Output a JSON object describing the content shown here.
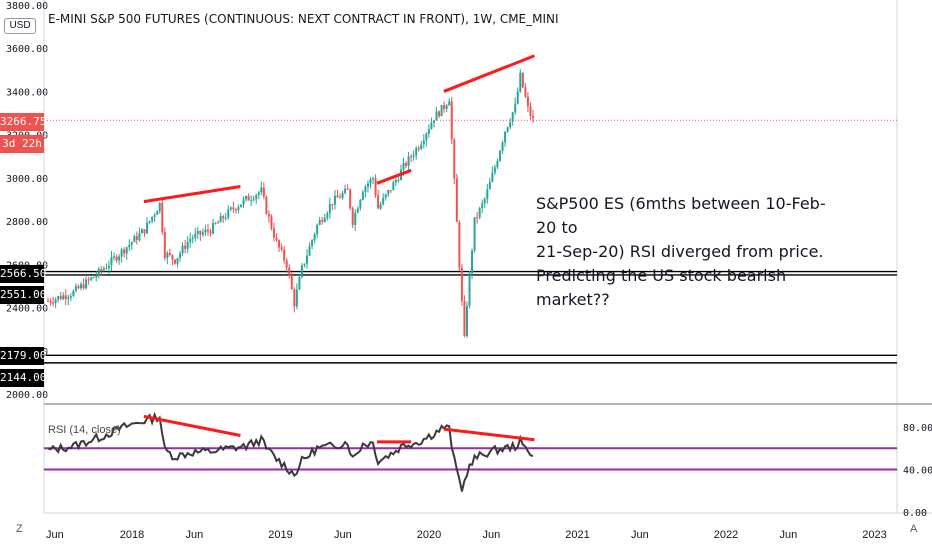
{
  "header": {
    "title": "E-MINI S&P 500 FUTURES (CONTINUOUS: NEXT CONTRACT IN FRONT), 1W, CME_MINI",
    "currency_button": "USD"
  },
  "annotation": {
    "text": "S&P500 ES (6mths between 10-Feb-20 to\n21-Sep-20) RSI diverged from price.\nPredicting the US stock bearish market??"
  },
  "toolbar": {
    "z_label": "Z",
    "a_label": "A"
  },
  "price_badges": {
    "last_price": "3266.75",
    "countdown": "3d 22h",
    "level_1": "2566.50",
    "level_2": "2551.00",
    "level_3": "2179.00",
    "level_4": "2144.00"
  },
  "colors": {
    "up_candle": "#26a69a",
    "down_candle": "#ef5350",
    "trendline": "#ff1a1a",
    "rsi_line": "#3a3a3a",
    "rsi_band": "#9c27b0",
    "badge_dark": "#000000",
    "badge_red": "#ef5350"
  },
  "chart_data": [
    {
      "type": "candlestick",
      "title": "E-MINI S&P 500 FUTURES (CONTINUOUS: NEXT CONTRACT IN FRONT), 1W, CME_MINI",
      "interval": "1W",
      "ylim": [
        1980,
        3810
      ],
      "y_ticks": [
        "2000.00",
        "2200.00",
        "2400.00",
        "2600.00",
        "2800.00",
        "3000.00",
        "3200.00",
        "3400.00",
        "3600.00",
        "3800.00"
      ],
      "x_ticks": [
        "Jun",
        "2018",
        "Jun",
        "2019",
        "Jun",
        "2020",
        "Jun",
        "2021",
        "Jun",
        "2022",
        "Jun",
        "2023"
      ],
      "last_price": 3266.75,
      "horizontal_levels": [
        2566.5,
        2551.0,
        2179.0,
        2144.0
      ],
      "anchors": [
        {
          "t": 0,
          "p": 2430
        },
        {
          "t": 10,
          "p": 2470
        },
        {
          "t": 20,
          "p": 2560
        },
        {
          "t": 30,
          "p": 2670
        },
        {
          "t": 38,
          "p": 2760
        },
        {
          "t": 44,
          "p": 2880
        },
        {
          "t": 46,
          "p": 2650
        },
        {
          "t": 50,
          "p": 2620
        },
        {
          "t": 56,
          "p": 2720
        },
        {
          "t": 64,
          "p": 2760
        },
        {
          "t": 72,
          "p": 2850
        },
        {
          "t": 78,
          "p": 2900
        },
        {
          "t": 84,
          "p": 2940
        },
        {
          "t": 86,
          "p": 2850
        },
        {
          "t": 90,
          "p": 2700
        },
        {
          "t": 94,
          "p": 2600
        },
        {
          "t": 97,
          "p": 2420
        },
        {
          "t": 100,
          "p": 2580
        },
        {
          "t": 106,
          "p": 2780
        },
        {
          "t": 112,
          "p": 2890
        },
        {
          "t": 118,
          "p": 2940
        },
        {
          "t": 120,
          "p": 2800
        },
        {
          "t": 124,
          "p": 2950
        },
        {
          "t": 128,
          "p": 3000
        },
        {
          "t": 130,
          "p": 2860
        },
        {
          "t": 136,
          "p": 2970
        },
        {
          "t": 140,
          "p": 3050
        },
        {
          "t": 146,
          "p": 3150
        },
        {
          "t": 152,
          "p": 3280
        },
        {
          "t": 156,
          "p": 3330
        },
        {
          "t": 158,
          "p": 3370
        },
        {
          "t": 160,
          "p": 2980
        },
        {
          "t": 162,
          "p": 2600
        },
        {
          "t": 163,
          "p": 2420
        },
        {
          "t": 164,
          "p": 2250
        },
        {
          "t": 165,
          "p": 2420
        },
        {
          "t": 168,
          "p": 2800
        },
        {
          "t": 172,
          "p": 2900
        },
        {
          "t": 176,
          "p": 3050
        },
        {
          "t": 180,
          "p": 3220
        },
        {
          "t": 184,
          "p": 3330
        },
        {
          "t": 186,
          "p": 3470
        },
        {
          "t": 187,
          "p": 3420
        },
        {
          "t": 189,
          "p": 3320
        },
        {
          "t": 191,
          "p": 3266.75
        }
      ],
      "trendlines": [
        {
          "from": [
            2018.08,
            2890
          ],
          "to": [
            2018.73,
            2960
          ]
        },
        {
          "from": [
            2019.65,
            2975
          ],
          "to": [
            2019.88,
            3035
          ]
        },
        {
          "from": [
            2020.1,
            3400
          ],
          "to": [
            2020.71,
            3565
          ]
        }
      ]
    },
    {
      "type": "line",
      "title": "RSI (14, close)",
      "ylim": [
        0,
        100
      ],
      "y_ticks": [
        "0.00",
        "40.00",
        "80.00"
      ],
      "bands": [
        60,
        40
      ],
      "series": [
        {
          "name": "RSI (14, close)",
          "anchors": [
            {
              "t": 0,
              "v": 58
            },
            {
              "t": 10,
              "v": 62
            },
            {
              "t": 20,
              "v": 70
            },
            {
              "t": 30,
              "v": 80
            },
            {
              "t": 38,
              "v": 86
            },
            {
              "t": 44,
              "v": 90
            },
            {
              "t": 46,
              "v": 58
            },
            {
              "t": 50,
              "v": 52
            },
            {
              "t": 56,
              "v": 56
            },
            {
              "t": 64,
              "v": 57
            },
            {
              "t": 72,
              "v": 60
            },
            {
              "t": 78,
              "v": 62
            },
            {
              "t": 84,
              "v": 68
            },
            {
              "t": 86,
              "v": 60
            },
            {
              "t": 90,
              "v": 50
            },
            {
              "t": 94,
              "v": 42
            },
            {
              "t": 97,
              "v": 35
            },
            {
              "t": 100,
              "v": 48
            },
            {
              "t": 106,
              "v": 60
            },
            {
              "t": 112,
              "v": 62
            },
            {
              "t": 118,
              "v": 66
            },
            {
              "t": 120,
              "v": 50
            },
            {
              "t": 124,
              "v": 64
            },
            {
              "t": 128,
              "v": 65
            },
            {
              "t": 130,
              "v": 48
            },
            {
              "t": 136,
              "v": 56
            },
            {
              "t": 140,
              "v": 63
            },
            {
              "t": 146,
              "v": 66
            },
            {
              "t": 152,
              "v": 74
            },
            {
              "t": 156,
              "v": 80
            },
            {
              "t": 158,
              "v": 78
            },
            {
              "t": 160,
              "v": 48
            },
            {
              "t": 162,
              "v": 30
            },
            {
              "t": 163,
              "v": 22
            },
            {
              "t": 164,
              "v": 28
            },
            {
              "t": 165,
              "v": 38
            },
            {
              "t": 168,
              "v": 50
            },
            {
              "t": 172,
              "v": 55
            },
            {
              "t": 176,
              "v": 58
            },
            {
              "t": 180,
              "v": 60
            },
            {
              "t": 184,
              "v": 62
            },
            {
              "t": 186,
              "v": 66
            },
            {
              "t": 187,
              "v": 62
            },
            {
              "t": 189,
              "v": 58
            },
            {
              "t": 191,
              "v": 55
            }
          ]
        }
      ],
      "trendlines": [
        {
          "from": [
            2018.08,
            90
          ],
          "to": [
            2018.73,
            72
          ]
        },
        {
          "from": [
            2019.65,
            66
          ],
          "to": [
            2019.88,
            66
          ]
        },
        {
          "from": [
            2020.1,
            78
          ],
          "to": [
            2020.71,
            68
          ]
        }
      ]
    }
  ]
}
